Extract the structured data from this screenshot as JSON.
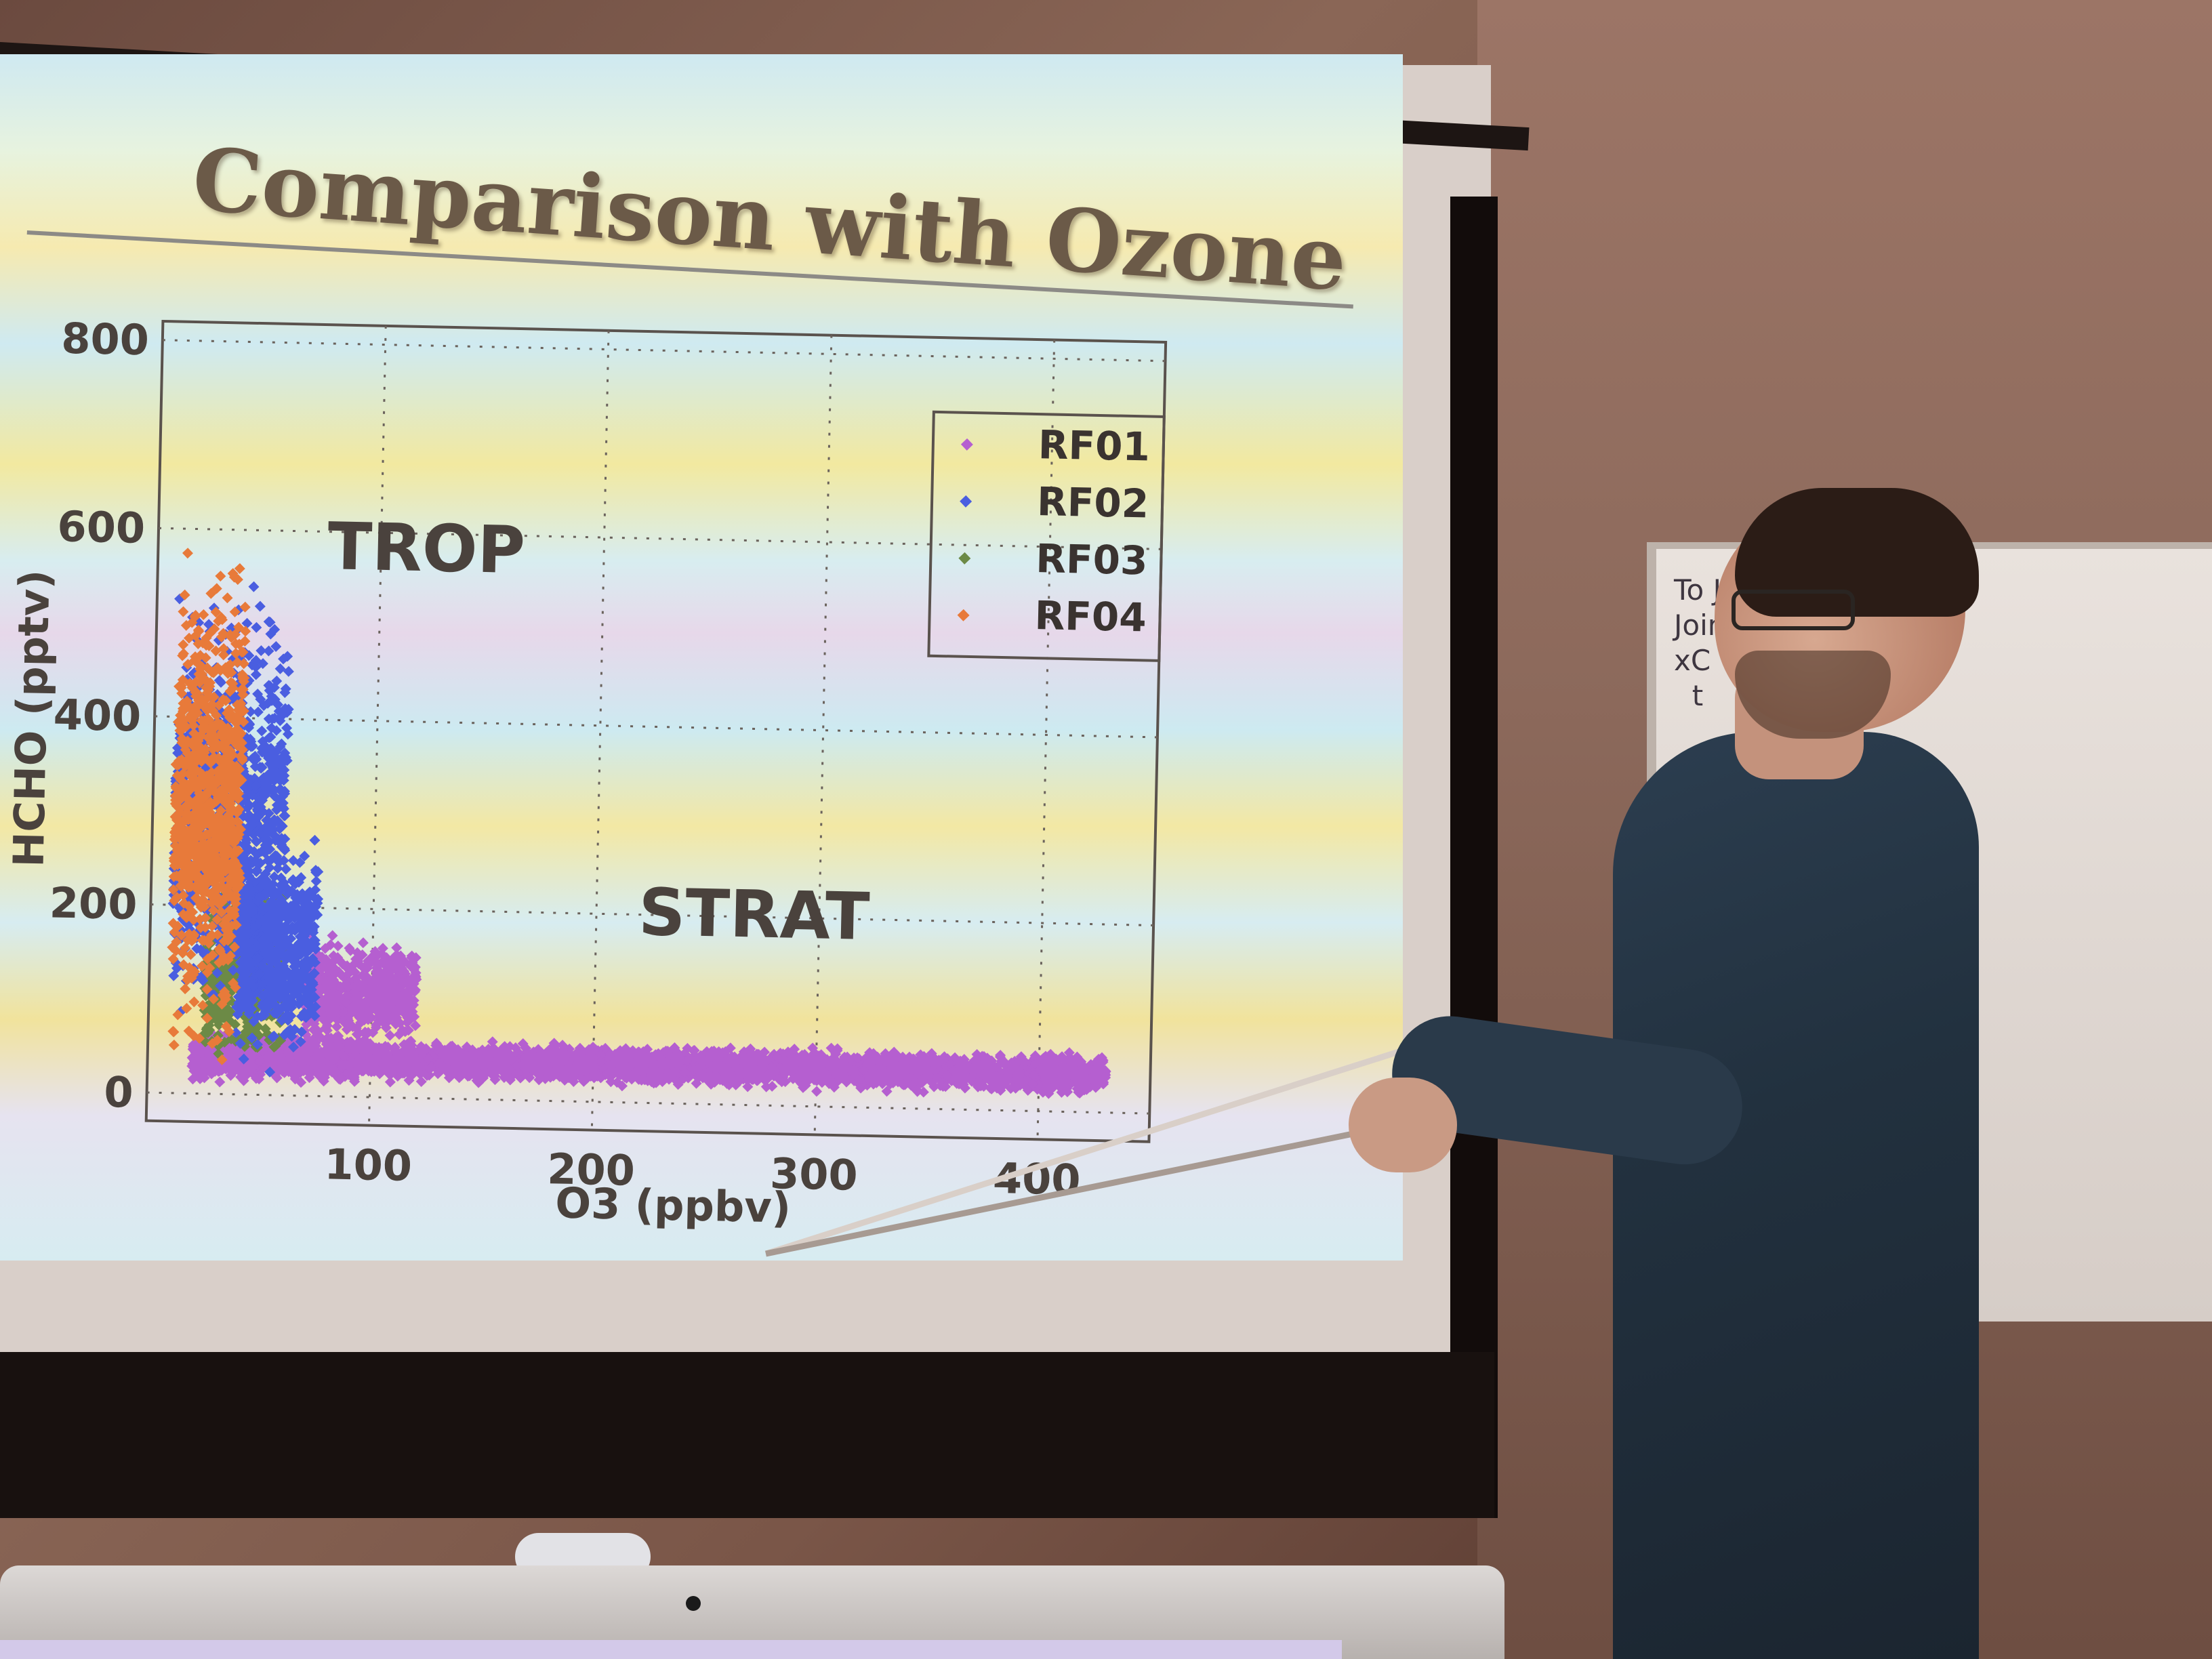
{
  "slide": {
    "title": "Comparison with Ozone",
    "regions": {
      "trop": "TROP",
      "strat": "STRAT"
    }
  },
  "chart_data": {
    "type": "scatter",
    "xlabel": "O3 (ppbv)",
    "ylabel": "HCHO (pptv)",
    "xlim": [
      0,
      450
    ],
    "ylim": [
      -30,
      820
    ],
    "xticks": [
      100,
      200,
      300,
      400
    ],
    "yticks": [
      0,
      200,
      400,
      600,
      800
    ],
    "grid": true,
    "legend_position": "top-right",
    "legend": [
      "RF01",
      "RF02",
      "RF03",
      "RF04"
    ],
    "series": [
      {
        "name": "RF01",
        "color": "#b55fd0",
        "clusters": [
          {
            "x_min": 20,
            "x_max": 95,
            "y_center": 40,
            "y_spread": 30
          },
          {
            "x_min": 70,
            "x_max": 120,
            "y_center": 110,
            "y_spread": 70
          },
          {
            "x_min": 95,
            "x_max": 430,
            "y_center": 40,
            "y_spread": 25
          }
        ]
      },
      {
        "name": "RF02",
        "color": "#4a5ee0",
        "clusters": [
          {
            "x_min": 10,
            "x_max": 60,
            "y_center": 300,
            "y_spread": 270
          },
          {
            "x_min": 40,
            "x_max": 75,
            "y_center": 150,
            "y_spread": 130
          }
        ]
      },
      {
        "name": "RF03",
        "color": "#6c8a46",
        "clusters": [
          {
            "x_min": 25,
            "x_max": 60,
            "y_center": 130,
            "y_spread": 110
          }
        ]
      },
      {
        "name": "RF04",
        "color": "#e87a3a",
        "clusters": [
          {
            "x_min": 10,
            "x_max": 40,
            "y_center": 300,
            "y_spread": 300
          }
        ]
      }
    ]
  },
  "whiteboard": {
    "text": "To Jo\nJoin\nxC\n  t"
  },
  "colors": {
    "slide_text": "#4a423d",
    "title": "#6b5a48",
    "shirt": "#22313f"
  }
}
